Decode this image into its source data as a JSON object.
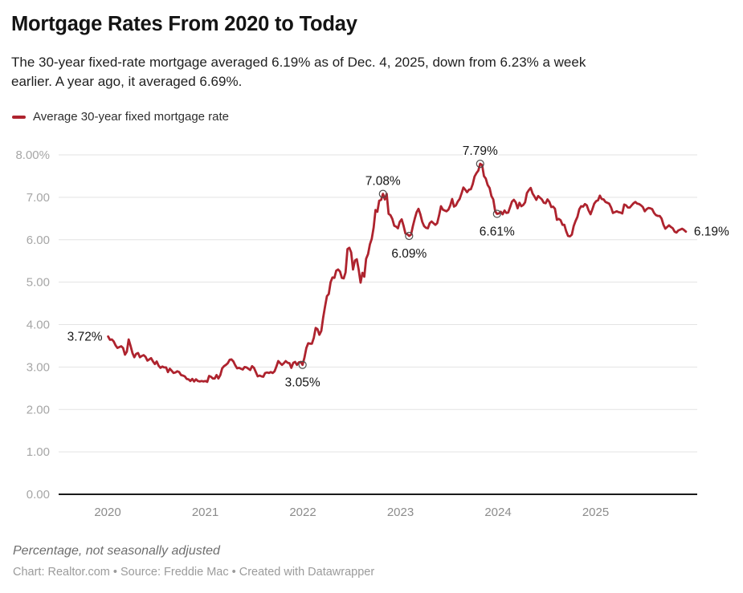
{
  "header": {
    "title": "Mortgage Rates From 2020 to Today",
    "description_lines": [
      "The 30-year fixed-rate mortgage averaged 6.19% as of Dec. 4, 2025, down from 6.23% a week",
      "earlier. A year ago, it averaged 6.69%."
    ]
  },
  "legend": {
    "label": "Average 30-year fixed mortgage rate",
    "swatch_color": "#ae232e"
  },
  "chart_data": {
    "type": "line",
    "title": "Mortgage Rates From 2020 to Today",
    "xlabel": "",
    "ylabel": "Percentage, not seasonally adjusted",
    "ylim": [
      0,
      8
    ],
    "xlim": [
      2019.5,
      2026.04
    ],
    "grid": "horizontal-only",
    "legend_position": "top-left",
    "yticks": [
      {
        "value": 8,
        "label": "8.00%"
      },
      {
        "value": 7,
        "label": "7.00"
      },
      {
        "value": 6,
        "label": "6.00"
      },
      {
        "value": 5,
        "label": "5.00"
      },
      {
        "value": 4,
        "label": "4.00"
      },
      {
        "value": 3,
        "label": "3.00"
      },
      {
        "value": 2,
        "label": "2.00"
      },
      {
        "value": 1,
        "label": "1.00"
      },
      {
        "value": 0,
        "label": "0.00"
      }
    ],
    "xticks": [
      {
        "value": 2020,
        "label": "2020"
      },
      {
        "value": 2021,
        "label": "2021"
      },
      {
        "value": 2022,
        "label": "2022"
      },
      {
        "value": 2023,
        "label": "2023"
      },
      {
        "value": 2024,
        "label": "2024"
      },
      {
        "value": 2025,
        "label": "2025"
      }
    ],
    "series": [
      {
        "name": "Average 30-year fixed mortgage rate",
        "color": "#ae232e",
        "x_start": 2020.005,
        "x_end": 2025.925,
        "frequency": "weekly",
        "values": [
          3.72,
          3.64,
          3.65,
          3.6,
          3.51,
          3.45,
          3.47,
          3.49,
          3.45,
          3.29,
          3.36,
          3.65,
          3.5,
          3.33,
          3.23,
          3.31,
          3.33,
          3.23,
          3.26,
          3.28,
          3.24,
          3.15,
          3.18,
          3.21,
          3.13,
          3.07,
          3.13,
          3.03,
          2.98,
          3.01,
          2.99,
          2.99,
          2.88,
          2.96,
          2.91,
          2.86,
          2.87,
          2.9,
          2.88,
          2.81,
          2.8,
          2.78,
          2.72,
          2.71,
          2.67,
          2.72,
          2.66,
          2.71,
          2.67,
          2.66,
          2.67,
          2.66,
          2.67,
          2.65,
          2.79,
          2.77,
          2.73,
          2.73,
          2.81,
          2.73,
          2.81,
          2.97,
          3.02,
          3.05,
          3.09,
          3.17,
          3.18,
          3.13,
          3.04,
          2.97,
          2.98,
          2.96,
          2.94,
          3.0,
          2.99,
          2.96,
          2.93,
          3.02,
          2.98,
          2.88,
          2.78,
          2.8,
          2.78,
          2.77,
          2.86,
          2.87,
          2.86,
          2.88,
          2.86,
          2.9,
          3.01,
          3.14,
          3.09,
          3.05,
          3.09,
          3.14,
          3.1,
          3.09,
          2.98,
          3.1,
          3.12,
          3.05,
          3.11,
          3.12,
          3.05,
          3.22,
          3.45,
          3.56,
          3.55,
          3.55,
          3.69,
          3.92,
          3.89,
          3.76,
          3.85,
          4.16,
          4.42,
          4.67,
          4.72,
          5.0,
          5.11,
          5.1,
          5.27,
          5.3,
          5.25,
          5.1,
          5.09,
          5.23,
          5.78,
          5.81,
          5.7,
          5.3,
          5.51,
          5.54,
          5.3,
          4.99,
          5.22,
          5.13,
          5.55,
          5.66,
          5.89,
          6.02,
          6.29,
          6.7,
          6.66,
          6.92,
          6.94,
          7.08,
          6.95,
          7.08,
          6.61,
          6.58,
          6.49,
          6.33,
          6.31,
          6.27,
          6.42,
          6.48,
          6.33,
          6.15,
          6.13,
          6.09,
          6.12,
          6.32,
          6.5,
          6.65,
          6.73,
          6.6,
          6.42,
          6.32,
          6.28,
          6.27,
          6.39,
          6.43,
          6.39,
          6.35,
          6.39,
          6.57,
          6.79,
          6.71,
          6.69,
          6.67,
          6.71,
          6.81,
          6.96,
          6.78,
          6.81,
          6.9,
          6.96,
          7.09,
          7.23,
          7.18,
          7.12,
          7.18,
          7.19,
          7.31,
          7.49,
          7.57,
          7.63,
          7.79,
          7.76,
          7.5,
          7.44,
          7.29,
          7.22,
          7.03,
          6.95,
          6.67,
          6.61,
          6.62,
          6.66,
          6.6,
          6.69,
          6.63,
          6.64,
          6.77,
          6.9,
          6.94,
          6.88,
          6.74,
          6.87,
          6.79,
          6.82,
          6.88,
          7.1,
          7.17,
          7.22,
          7.09,
          7.02,
          6.94,
          7.03,
          6.99,
          6.95,
          6.87,
          6.86,
          6.95,
          6.89,
          6.77,
          6.78,
          6.73,
          6.47,
          6.49,
          6.46,
          6.35,
          6.35,
          6.2,
          6.09,
          6.08,
          6.12,
          6.32,
          6.44,
          6.54,
          6.72,
          6.79,
          6.78,
          6.84,
          6.81,
          6.69,
          6.6,
          6.72,
          6.85,
          6.91,
          6.93,
          7.04,
          6.96,
          6.95,
          6.89,
          6.87,
          6.85,
          6.76,
          6.63,
          6.65,
          6.67,
          6.65,
          6.64,
          6.62,
          6.83,
          6.81,
          6.76,
          6.76,
          6.81,
          6.86,
          6.89,
          6.85,
          6.84,
          6.81,
          6.77,
          6.67,
          6.72,
          6.75,
          6.74,
          6.72,
          6.63,
          6.58,
          6.56,
          6.56,
          6.5,
          6.35,
          6.26,
          6.3,
          6.34,
          6.3,
          6.27,
          6.19,
          6.17,
          6.22,
          6.24,
          6.26,
          6.23,
          6.19
        ]
      }
    ],
    "annotations": [
      {
        "label": "3.72%",
        "x": 2020.005,
        "value": 3.72,
        "placement": "left",
        "marker": false
      },
      {
        "label": "3.05%",
        "x": 2021.997,
        "value": 3.05,
        "placement": "below",
        "marker": true
      },
      {
        "label": "7.08%",
        "x": 2022.821,
        "value": 7.08,
        "placement": "above",
        "marker": true
      },
      {
        "label": "6.09%",
        "x": 2023.089,
        "value": 6.09,
        "placement": "below",
        "marker": true
      },
      {
        "label": "7.79%",
        "x": 2023.817,
        "value": 7.79,
        "placement": "above",
        "marker": true
      },
      {
        "label": "6.61%",
        "x": 2023.99,
        "value": 6.61,
        "placement": "below",
        "marker": true
      },
      {
        "label": "6.19%",
        "x": 2025.925,
        "value": 6.19,
        "placement": "right",
        "marker": false
      }
    ]
  },
  "footer": {
    "note": "Percentage, not seasonally adjusted",
    "credit": "Chart: Realtor.com • Source: Freddie Mac • Created with Datawrapper"
  }
}
